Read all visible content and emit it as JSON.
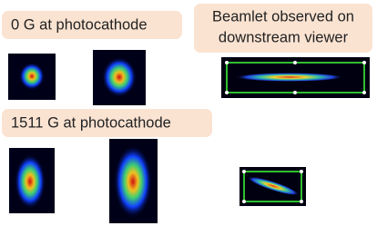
{
  "labels": {
    "zero_field": "0 G at photocathode",
    "viewer": [
      "Beamlet observed on",
      "downstream viewer"
    ],
    "field_on": "1511 G at photocathode"
  }
}
